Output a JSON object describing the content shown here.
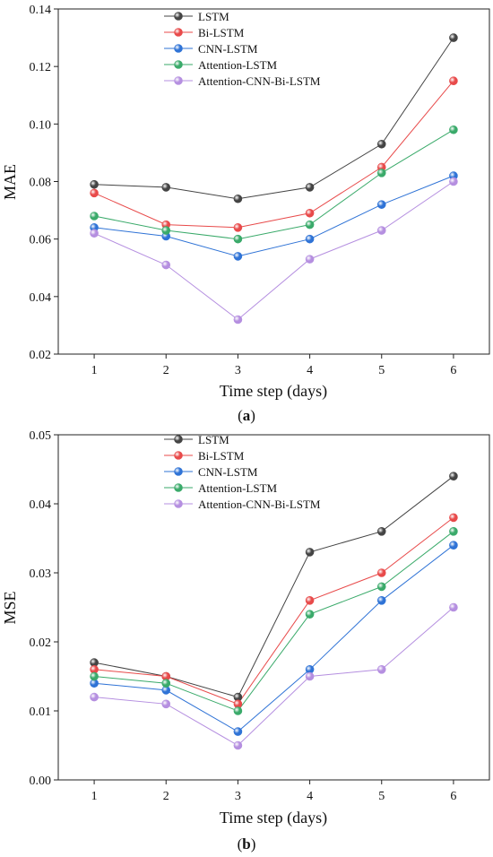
{
  "chart_data": [
    {
      "type": "line",
      "panel_label": "(a)",
      "panel_letter": "a",
      "xlabel": "Time step (days)",
      "ylabel": "MAE",
      "x": [
        1,
        2,
        3,
        4,
        5,
        6
      ],
      "xlim": [
        0.5,
        6.5
      ],
      "ylim": [
        0.02,
        0.14
      ],
      "yticks": [
        "0.02",
        "0.04",
        "0.06",
        "0.08",
        "0.10",
        "0.12",
        "0.14"
      ],
      "legend_position": "top-left",
      "grid": false,
      "series": [
        {
          "name": "LSTM",
          "color": "#444444",
          "values": [
            0.079,
            0.078,
            0.074,
            0.078,
            0.093,
            0.13
          ]
        },
        {
          "name": "Bi-LSTM",
          "color": "#e84a4a",
          "values": [
            0.076,
            0.065,
            0.064,
            0.069,
            0.085,
            0.115
          ]
        },
        {
          "name": "CNN-LSTM",
          "color": "#2f73d6",
          "values": [
            0.064,
            0.061,
            0.054,
            0.06,
            0.072,
            0.082
          ]
        },
        {
          "name": "Attention-LSTM",
          "color": "#3aaa6a",
          "values": [
            0.068,
            0.063,
            0.06,
            0.065,
            0.083,
            0.098
          ]
        },
        {
          "name": "Attention-CNN-Bi-LSTM",
          "color": "#b58fe0",
          "values": [
            0.062,
            0.051,
            0.032,
            0.053,
            0.063,
            0.08
          ]
        }
      ]
    },
    {
      "type": "line",
      "panel_label": "(b)",
      "panel_letter": "b",
      "xlabel": "Time step (days)",
      "ylabel": "MSE",
      "x": [
        1,
        2,
        3,
        4,
        5,
        6
      ],
      "xlim": [
        0.5,
        6.5
      ],
      "ylim": [
        0.0,
        0.05
      ],
      "yticks": [
        "0.00",
        "0.01",
        "0.02",
        "0.03",
        "0.04",
        "0.05"
      ],
      "legend_position": "top-left",
      "grid": false,
      "series": [
        {
          "name": "LSTM",
          "color": "#444444",
          "values": [
            0.017,
            0.015,
            0.012,
            0.033,
            0.036,
            0.044
          ]
        },
        {
          "name": "Bi-LSTM",
          "color": "#e84a4a",
          "values": [
            0.016,
            0.015,
            0.011,
            0.026,
            0.03,
            0.038
          ]
        },
        {
          "name": "CNN-LSTM",
          "color": "#2f73d6",
          "values": [
            0.014,
            0.013,
            0.007,
            0.016,
            0.026,
            0.034
          ]
        },
        {
          "name": "Attention-LSTM",
          "color": "#3aaa6a",
          "values": [
            0.015,
            0.014,
            0.01,
            0.024,
            0.028,
            0.036
          ]
        },
        {
          "name": "Attention-CNN-Bi-LSTM",
          "color": "#b58fe0",
          "values": [
            0.012,
            0.011,
            0.005,
            0.015,
            0.016,
            0.025
          ]
        }
      ]
    }
  ]
}
